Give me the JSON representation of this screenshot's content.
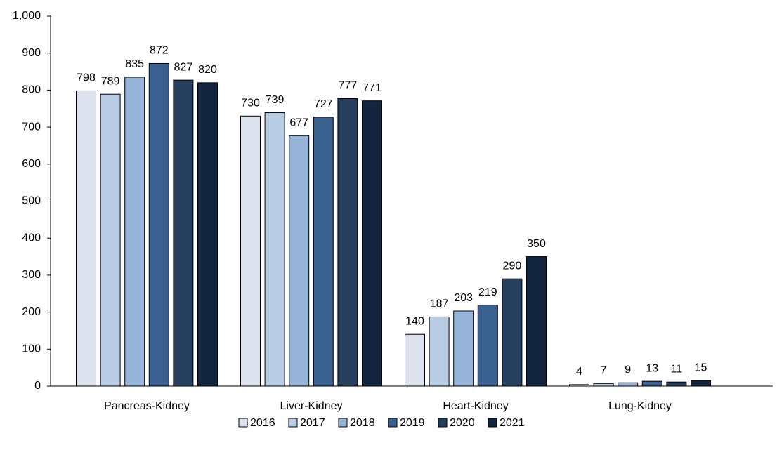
{
  "chart_data": {
    "type": "bar",
    "categories": [
      "Pancreas-Kidney",
      "Liver-Kidney",
      "Heart-Kidney",
      "Lung-Kidney"
    ],
    "series": [
      {
        "name": "2016",
        "color": "#dce3ef",
        "values": [
          798,
          730,
          140,
          4
        ]
      },
      {
        "name": "2017",
        "color": "#b8cce4",
        "values": [
          789,
          739,
          187,
          7
        ]
      },
      {
        "name": "2018",
        "color": "#95b3d7",
        "values": [
          835,
          677,
          203,
          9
        ]
      },
      {
        "name": "2019",
        "color": "#3a6090",
        "values": [
          872,
          727,
          219,
          13
        ]
      },
      {
        "name": "2020",
        "color": "#253e5e",
        "values": [
          827,
          777,
          290,
          11
        ]
      },
      {
        "name": "2021",
        "color": "#14253f",
        "values": [
          820,
          771,
          350,
          15
        ]
      }
    ],
    "ylim": [
      0,
      1000
    ],
    "yticks": [
      0,
      100,
      200,
      300,
      400,
      500,
      600,
      700,
      800,
      900,
      {
        "value": 1000,
        "label": "1,000"
      }
    ],
    "grid": false,
    "legend": "bottom"
  }
}
